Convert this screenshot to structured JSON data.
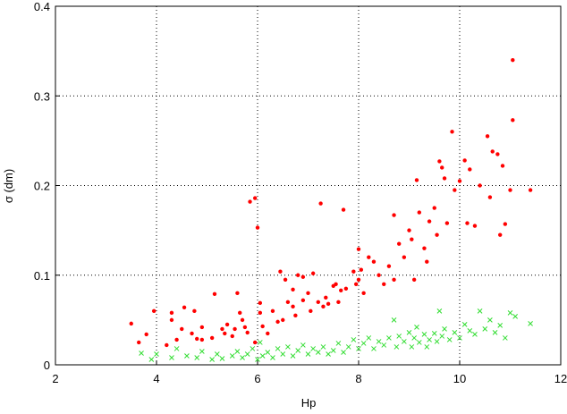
{
  "chart_data": {
    "type": "scatter",
    "xlabel": "Hp",
    "ylabel": "σ (dm)",
    "xlim": [
      2,
      12
    ],
    "ylim": [
      0,
      0.4
    ],
    "xticks": [
      2,
      4,
      6,
      8,
      10,
      12
    ],
    "yticks": [
      0,
      0.1,
      0.2,
      0.3,
      0.4
    ],
    "grid": true,
    "series": [
      {
        "color": "#ff0000",
        "marker": "dot",
        "x": [
          3.5,
          3.65,
          3.8,
          3.95,
          4.2,
          4.3,
          4.3,
          4.4,
          4.5,
          4.55,
          4.7,
          4.75,
          4.8,
          4.9,
          4.9,
          5.1,
          5.15,
          5.3,
          5.35,
          5.4,
          5.5,
          5.55,
          5.6,
          5.65,
          5.7,
          5.75,
          5.8,
          5.85,
          5.95,
          5.95,
          6.0,
          6.05,
          6.05,
          6.1,
          6.2,
          6.3,
          6.4,
          6.45,
          6.5,
          6.55,
          6.6,
          6.7,
          6.7,
          6.75,
          6.8,
          6.9,
          6.9,
          7.0,
          7.05,
          7.1,
          7.2,
          7.25,
          7.3,
          7.35,
          7.4,
          7.5,
          7.55,
          7.6,
          7.65,
          7.7,
          7.75,
          7.9,
          7.95,
          8.0,
          8.0,
          8.05,
          8.1,
          8.2,
          8.3,
          8.4,
          8.5,
          8.6,
          8.7,
          8.7,
          8.8,
          8.9,
          9.0,
          9.05,
          9.1,
          9.15,
          9.2,
          9.3,
          9.35,
          9.4,
          9.5,
          9.55,
          9.6,
          9.65,
          9.7,
          9.75,
          9.85,
          9.9,
          10.0,
          10.1,
          10.15,
          10.2,
          10.3,
          10.4,
          10.55,
          10.6,
          10.65,
          10.75,
          10.8,
          10.85,
          10.9,
          11.0,
          11.05,
          11.05,
          11.4
        ],
        "values": [
          0.046,
          0.025,
          0.034,
          0.06,
          0.022,
          0.058,
          0.05,
          0.028,
          0.04,
          0.064,
          0.035,
          0.06,
          0.029,
          0.042,
          0.028,
          0.03,
          0.079,
          0.04,
          0.035,
          0.045,
          0.032,
          0.04,
          0.08,
          0.058,
          0.05,
          0.042,
          0.036,
          0.182,
          0.025,
          0.186,
          0.153,
          0.069,
          0.058,
          0.043,
          0.035,
          0.06,
          0.048,
          0.104,
          0.05,
          0.095,
          0.07,
          0.065,
          0.084,
          0.055,
          0.1,
          0.098,
          0.072,
          0.08,
          0.06,
          0.102,
          0.07,
          0.18,
          0.065,
          0.075,
          0.068,
          0.088,
          0.09,
          0.07,
          0.083,
          0.173,
          0.085,
          0.104,
          0.09,
          0.129,
          0.095,
          0.106,
          0.08,
          0.12,
          0.115,
          0.1,
          0.09,
          0.11,
          0.167,
          0.095,
          0.135,
          0.12,
          0.15,
          0.14,
          0.095,
          0.206,
          0.17,
          0.13,
          0.115,
          0.16,
          0.175,
          0.145,
          0.227,
          0.22,
          0.208,
          0.158,
          0.26,
          0.195,
          0.205,
          0.228,
          0.158,
          0.218,
          0.155,
          0.2,
          0.255,
          0.187,
          0.238,
          0.235,
          0.145,
          0.222,
          0.157,
          0.195,
          0.273,
          0.34,
          0.195
        ]
      },
      {
        "color": "#33dd33",
        "marker": "x",
        "x": [
          3.7,
          3.9,
          4.0,
          4.3,
          4.4,
          4.6,
          4.8,
          4.9,
          5.1,
          5.2,
          5.3,
          5.5,
          5.6,
          5.7,
          5.8,
          5.9,
          6.0,
          6.05,
          6.1,
          6.2,
          6.3,
          6.4,
          6.5,
          6.6,
          6.7,
          6.8,
          6.9,
          7.0,
          7.1,
          7.2,
          7.3,
          7.4,
          7.5,
          7.6,
          7.7,
          7.8,
          7.9,
          8.0,
          8.1,
          8.2,
          8.3,
          8.4,
          8.5,
          8.6,
          8.7,
          8.75,
          8.8,
          8.9,
          9.0,
          9.05,
          9.1,
          9.15,
          9.2,
          9.3,
          9.35,
          9.4,
          9.5,
          9.55,
          9.6,
          9.65,
          9.7,
          9.8,
          9.9,
          10.0,
          10.1,
          10.2,
          10.3,
          10.4,
          10.5,
          10.6,
          10.7,
          10.8,
          10.9,
          11.0,
          11.1,
          11.4
        ],
        "values": [
          0.013,
          0.006,
          0.012,
          0.008,
          0.018,
          0.01,
          0.008,
          0.015,
          0.006,
          0.012,
          0.007,
          0.01,
          0.015,
          0.008,
          0.012,
          0.018,
          0.006,
          0.025,
          0.01,
          0.014,
          0.008,
          0.018,
          0.012,
          0.02,
          0.01,
          0.016,
          0.022,
          0.012,
          0.018,
          0.014,
          0.02,
          0.012,
          0.016,
          0.024,
          0.014,
          0.02,
          0.028,
          0.018,
          0.024,
          0.03,
          0.018,
          0.026,
          0.022,
          0.03,
          0.05,
          0.02,
          0.032,
          0.026,
          0.036,
          0.02,
          0.03,
          0.042,
          0.025,
          0.034,
          0.02,
          0.028,
          0.035,
          0.026,
          0.06,
          0.032,
          0.04,
          0.028,
          0.036,
          0.03,
          0.045,
          0.038,
          0.034,
          0.06,
          0.04,
          0.05,
          0.036,
          0.044,
          0.03,
          0.058,
          0.054,
          0.046
        ]
      }
    ]
  }
}
